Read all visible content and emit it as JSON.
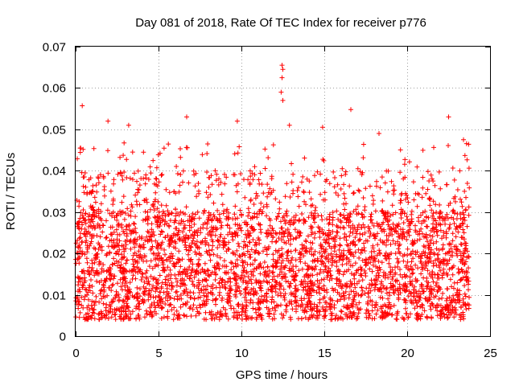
{
  "chart_data": {
    "type": "scatter",
    "title": "Day 081 of 2018, Rate Of TEC Index for receiver p776",
    "xlabel": "GPS time / hours",
    "ylabel": "ROTI / TECUs",
    "xlim": [
      0,
      25
    ],
    "ylim": [
      0,
      0.07
    ],
    "xticks": [
      0,
      5,
      10,
      15,
      20,
      25
    ],
    "xtick_labels": [
      "0",
      "5",
      "10",
      "15",
      "20",
      "25"
    ],
    "yticks": [
      0,
      0.01,
      0.02,
      0.03,
      0.04,
      0.05,
      0.06,
      0.07
    ],
    "ytick_labels": [
      "0",
      "0.01",
      "0.02",
      "0.03",
      "0.04",
      "0.05",
      "0.06",
      "0.07"
    ],
    "grid": true,
    "marker": "+",
    "series": [
      {
        "name": "ROTI",
        "color": "#ff0000",
        "x_range_hours": [
          0,
          23.75
        ],
        "typical_range": [
          0.004,
          0.03
        ],
        "notable_points": [
          {
            "x": 0.4,
            "y": 0.0557
          },
          {
            "x": 0.3,
            "y": 0.0455
          },
          {
            "x": 1.95,
            "y": 0.052
          },
          {
            "x": 3.2,
            "y": 0.051
          },
          {
            "x": 6.7,
            "y": 0.053
          },
          {
            "x": 9.75,
            "y": 0.052
          },
          {
            "x": 12.45,
            "y": 0.0655
          },
          {
            "x": 12.5,
            "y": 0.0645
          },
          {
            "x": 12.45,
            "y": 0.0625
          },
          {
            "x": 12.4,
            "y": 0.059
          },
          {
            "x": 12.5,
            "y": 0.057
          },
          {
            "x": 12.9,
            "y": 0.051
          },
          {
            "x": 14.9,
            "y": 0.0505
          },
          {
            "x": 16.6,
            "y": 0.0548
          },
          {
            "x": 18.3,
            "y": 0.049
          },
          {
            "x": 22.5,
            "y": 0.053
          },
          {
            "x": 23.4,
            "y": 0.0475
          }
        ]
      }
    ]
  }
}
